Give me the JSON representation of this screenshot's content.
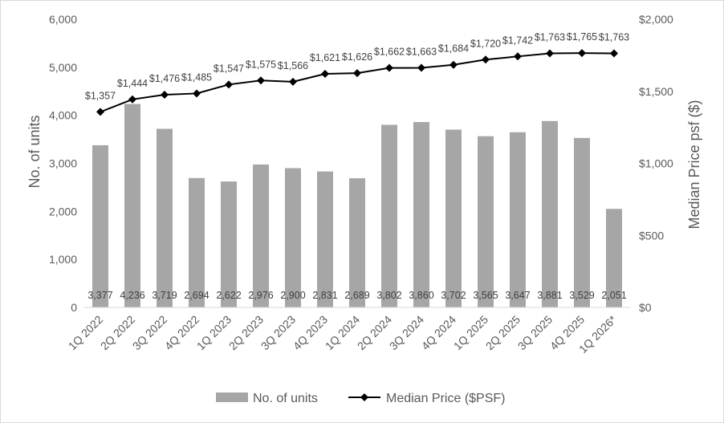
{
  "chart_data": {
    "type": "bar",
    "categories": [
      "1Q 2022",
      "2Q 2022",
      "3Q 2022",
      "4Q 2022",
      "1Q 2023",
      "2Q 2023",
      "3Q 2023",
      "4Q 2023",
      "1Q 2024",
      "2Q 2024",
      "3Q 2024",
      "4Q 2024",
      "1Q 2025",
      "2Q 2025",
      "3Q 2025",
      "4Q 2025",
      "1Q 2026*"
    ],
    "series": [
      {
        "name": "No. of units",
        "type": "bar",
        "axis": "left",
        "color": "#a6a6a6",
        "values": [
          3377,
          4236,
          3719,
          2694,
          2622,
          2976,
          2900,
          2831,
          2689,
          3802,
          3860,
          3702,
          3565,
          3647,
          3881,
          3529,
          2051
        ],
        "labels": [
          "3,377",
          "4,236",
          "3,719",
          "2,694",
          "2,622",
          "2,976",
          "2,900",
          "2,831",
          "2,689",
          "3,802",
          "3,860",
          "3,702",
          "3,565",
          "3,647",
          "3,881",
          "3,529",
          "2,051"
        ]
      },
      {
        "name": "Median Price ($PSF)",
        "type": "line",
        "axis": "right",
        "color": "#000000",
        "marker": "diamond",
        "values": [
          1357,
          1444,
          1476,
          1485,
          1547,
          1575,
          1566,
          1621,
          1626,
          1662,
          1663,
          1684,
          1720,
          1742,
          1763,
          1765,
          1763
        ],
        "labels": [
          "$1,357",
          "$1,444",
          "$1,476",
          "$1,485",
          "$1,547",
          "$1,575",
          "$1,566",
          "$1,621",
          "$1,626",
          "$1,662",
          "$1,663",
          "$1,684",
          "$1,720",
          "$1,742",
          "$1,763",
          "$1,765",
          "$1,763"
        ]
      }
    ],
    "ylabel": "No. of units",
    "ylim": [
      0,
      6000
    ],
    "yticks": [
      "0",
      "1,000",
      "2,000",
      "3,000",
      "4,000",
      "5,000",
      "6,000"
    ],
    "y2label": "Median Price psf ($)",
    "y2lim": [
      0,
      2000
    ],
    "y2ticks": [
      "$0",
      "$500",
      "$1,000",
      "$1,500",
      "$2,000"
    ],
    "grid": false,
    "legend": "bottom"
  }
}
